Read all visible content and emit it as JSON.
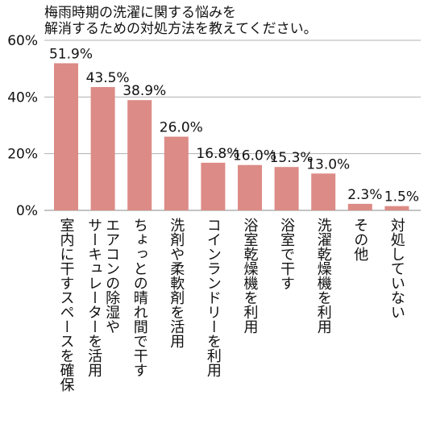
{
  "chart_data": {
    "type": "bar",
    "title_lines": [
      "梅雨時期の洗濯に関する悩みを",
      "解消するための対処方法を教えてください。"
    ],
    "categories": [
      "室内に干すスペースを確保",
      "エアコンの除湿や\nサーキュレーターを活用",
      "ちょっとの晴れ間で干す",
      "洗剤や柔軟剤を活用",
      "コインランドリーを利用",
      "浴室乾燥機を利用",
      "浴室で干す",
      "洗濯乾燥機を利用",
      "その他",
      "対処していない"
    ],
    "values": [
      51.9,
      43.5,
      38.9,
      26.0,
      16.8,
      16.0,
      15.3,
      13.0,
      2.3,
      1.5
    ],
    "value_labels": [
      "51.9%",
      "43.5%",
      "38.9%",
      "26.0%",
      "16.8%",
      "16.0%",
      "15.3%",
      "13.0%",
      "2.3%",
      "1.5%"
    ],
    "y_ticks": [
      0,
      20,
      40,
      60
    ],
    "y_tick_labels": [
      "0%",
      "20%",
      "40%",
      "60%"
    ],
    "ylim": [
      0,
      60
    ],
    "grid": true,
    "bar_color": "#dc8b86",
    "grid_color": "#b0b0b0"
  }
}
